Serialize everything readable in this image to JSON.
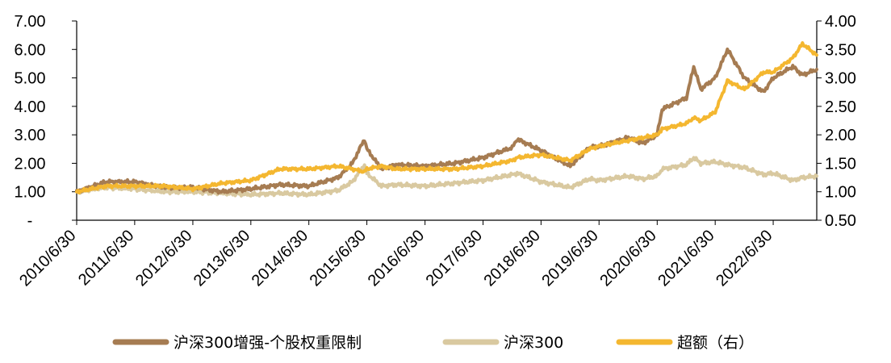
{
  "chart_data": {
    "type": "line",
    "title": "",
    "xlabel": "",
    "ylabel": "",
    "ylabel_right": "",
    "ylim": [
      0,
      7
    ],
    "ylim_right": [
      0.5,
      4.0
    ],
    "y_ticks": [
      "7.00",
      "6.00",
      "5.00",
      "4.00",
      "3.00",
      "2.00",
      "1.00",
      "-"
    ],
    "y_right_ticks": [
      "4.00",
      "3.50",
      "3.00",
      "2.50",
      "2.00",
      "1.50",
      "1.00",
      "0.50"
    ],
    "x_ticks": [
      "2010/6/30",
      "2011/6/30",
      "2012/6/30",
      "2013/6/30",
      "2014/6/30",
      "2015/6/30",
      "2016/6/30",
      "2017/6/30",
      "2018/6/30",
      "2019/6/30",
      "2020/6/30",
      "2021/6/30",
      "2022/6/30"
    ],
    "x_range": [
      "2010/6/30",
      "2023/3/31"
    ],
    "grid": false,
    "legend_position": "bottom",
    "x": [
      "2010/6/30",
      "2010/12/31",
      "2011/6/30",
      "2011/12/31",
      "2012/6/30",
      "2012/12/31",
      "2013/6/30",
      "2013/12/31",
      "2014/6/30",
      "2014/12/31",
      "2015/3/31",
      "2015/6/15",
      "2015/6/30",
      "2015/9/30",
      "2015/12/31",
      "2016/6/30",
      "2016/12/31",
      "2017/6/30",
      "2017/12/31",
      "2018/1/31",
      "2018/6/30",
      "2018/12/31",
      "2019/4/30",
      "2019/6/30",
      "2019/12/31",
      "2020/3/31",
      "2020/6/30",
      "2020/7/31",
      "2020/12/31",
      "2021/2/15",
      "2021/3/31",
      "2021/6/30",
      "2021/9/15",
      "2021/12/31",
      "2022/4/30",
      "2022/6/30",
      "2022/10/31",
      "2022/12/31",
      "2023/3/31"
    ],
    "series": [
      {
        "name": "沪深300增强-个股权重限制",
        "axis": "left",
        "color": "#A67C52",
        "values": [
          1.0,
          1.35,
          1.35,
          1.15,
          1.15,
          1.0,
          1.1,
          1.25,
          1.2,
          1.5,
          2.0,
          2.85,
          2.5,
          1.8,
          1.95,
          1.9,
          2.0,
          2.2,
          2.55,
          2.85,
          2.45,
          1.9,
          2.55,
          2.6,
          2.9,
          2.7,
          3.0,
          3.9,
          4.3,
          5.4,
          4.6,
          5.0,
          6.0,
          5.0,
          4.5,
          5.0,
          5.4,
          5.1,
          5.3
        ]
      },
      {
        "name": "沪深300",
        "axis": "left",
        "color": "#D9C9A0",
        "values": [
          1.0,
          1.15,
          1.1,
          1.0,
          1.0,
          0.95,
          0.9,
          0.95,
          0.9,
          1.05,
          1.35,
          1.95,
          1.65,
          1.2,
          1.25,
          1.2,
          1.3,
          1.4,
          1.6,
          1.65,
          1.35,
          1.15,
          1.45,
          1.4,
          1.55,
          1.45,
          1.55,
          1.8,
          1.95,
          2.2,
          2.0,
          2.05,
          1.95,
          1.85,
          1.6,
          1.65,
          1.4,
          1.5,
          1.55
        ]
      },
      {
        "name": "超额（右）",
        "axis": "right",
        "color": "#F4B730",
        "values": [
          1.0,
          1.1,
          1.1,
          1.1,
          1.05,
          1.15,
          1.2,
          1.4,
          1.4,
          1.45,
          1.4,
          1.35,
          1.4,
          1.45,
          1.4,
          1.4,
          1.4,
          1.45,
          1.55,
          1.6,
          1.65,
          1.55,
          1.75,
          1.8,
          1.9,
          1.95,
          2.0,
          2.1,
          2.2,
          2.3,
          2.25,
          2.4,
          2.95,
          2.8,
          3.1,
          3.1,
          3.35,
          3.6,
          3.4
        ]
      }
    ]
  }
}
